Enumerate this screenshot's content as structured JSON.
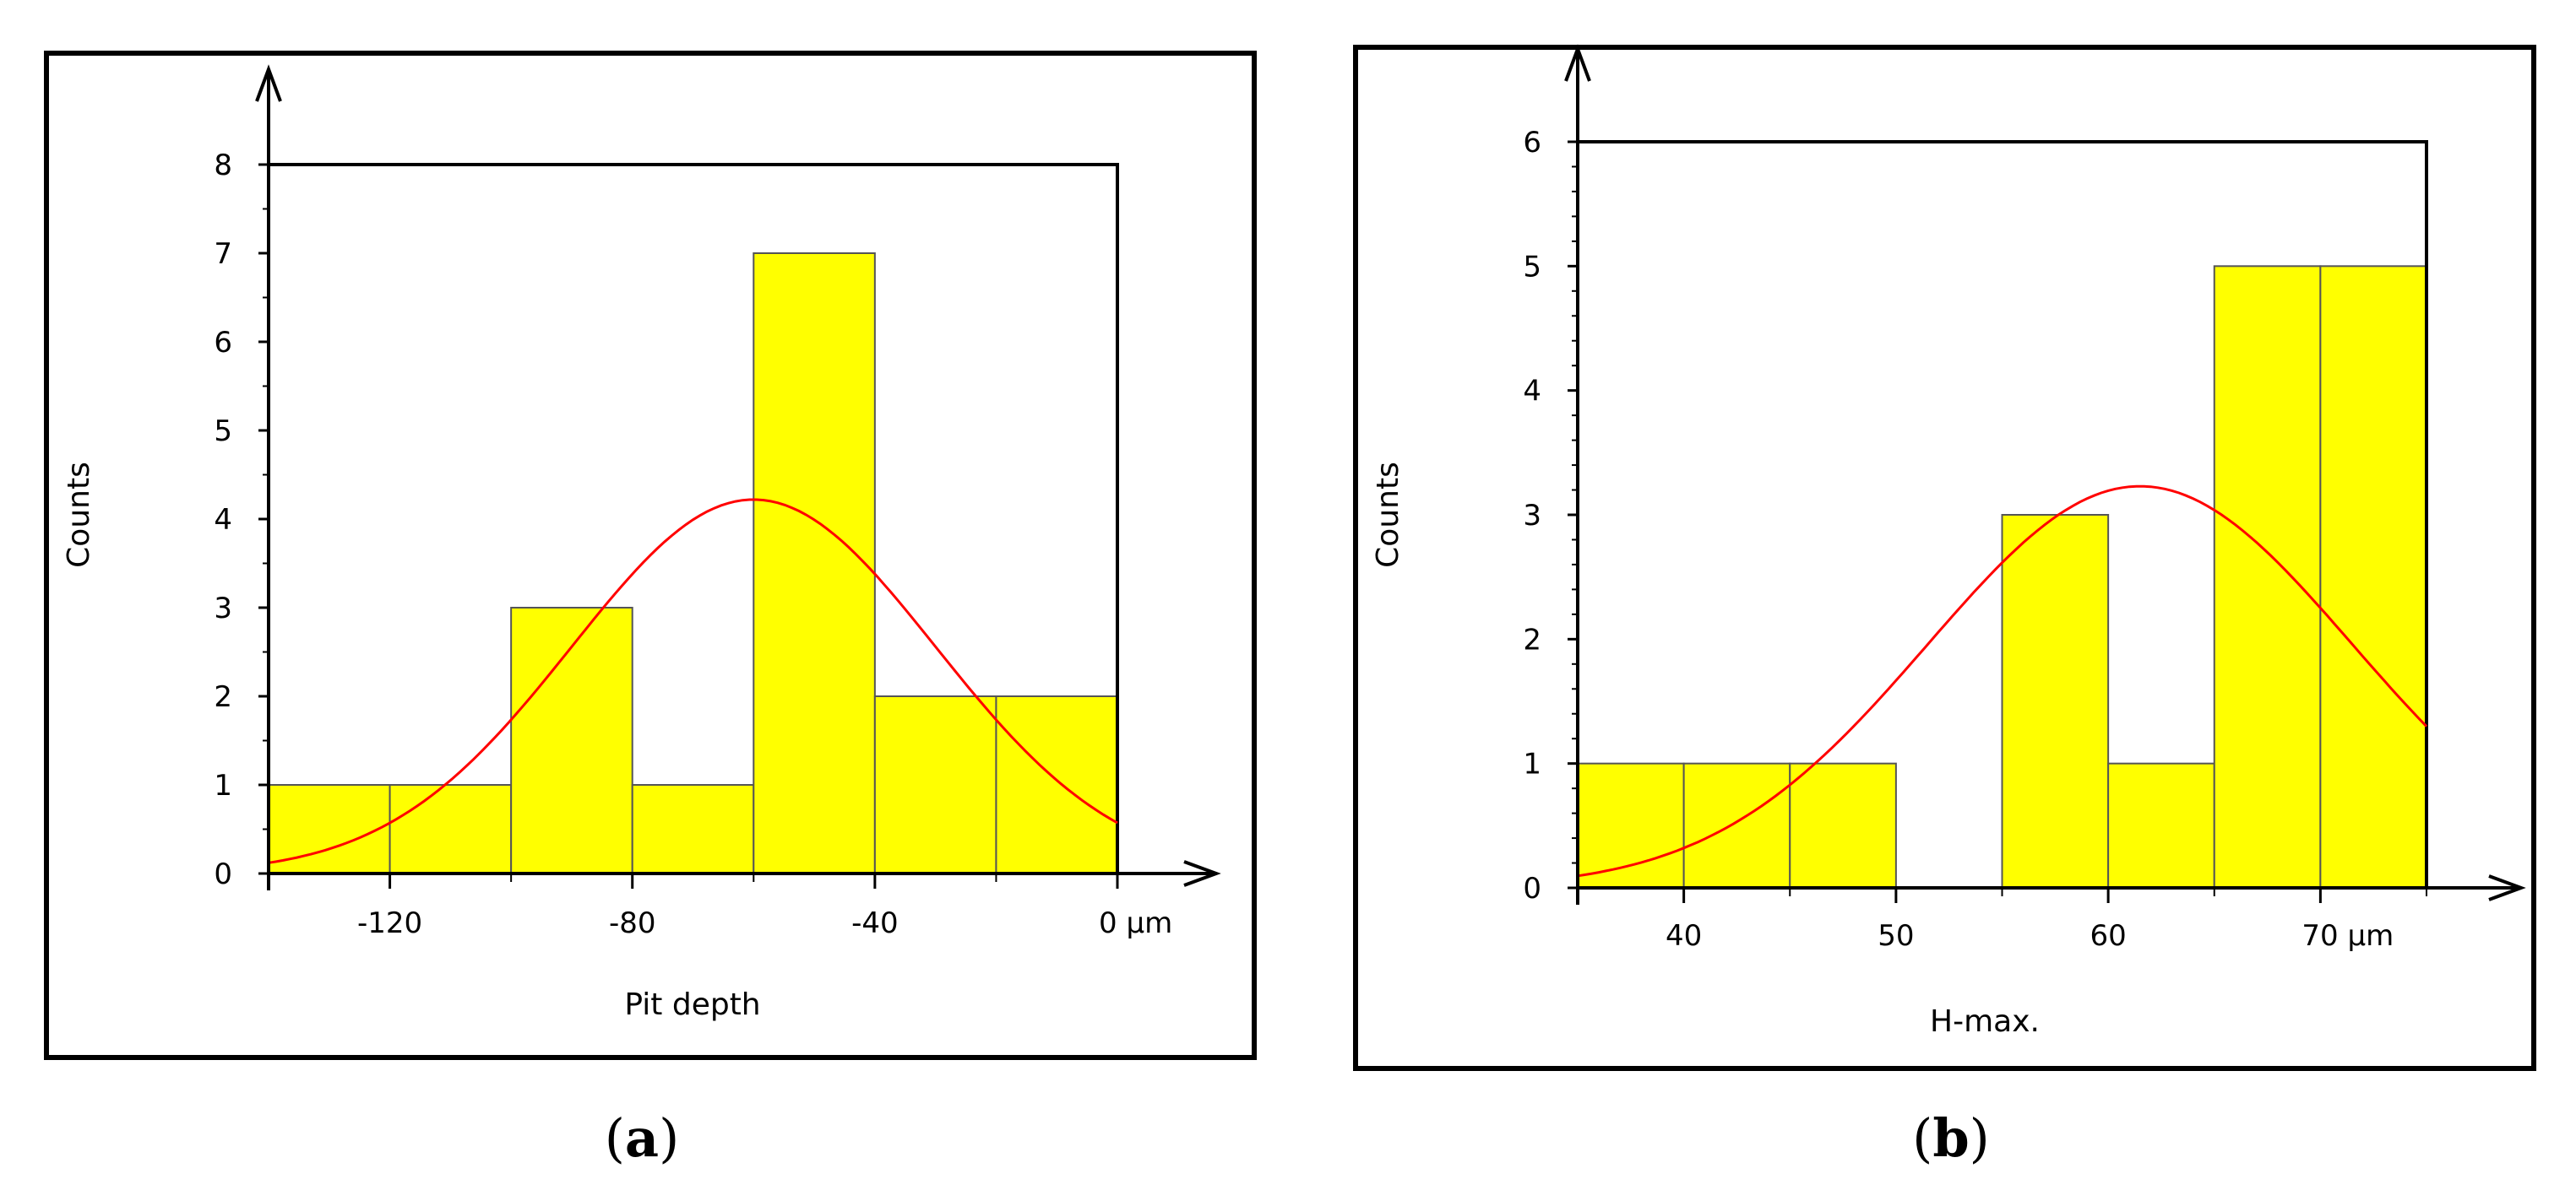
{
  "chart_data": [
    {
      "type": "bar",
      "panel_label": {
        "open": "(",
        "letter": "a",
        "close": ")"
      },
      "xlabel": "Pit depth",
      "ylabel": "Counts",
      "unit": "µm",
      "xlim": [
        -140,
        0
      ],
      "ylim": [
        0,
        8
      ],
      "x_ticks": [
        -120,
        -80,
        -40,
        0
      ],
      "x_tick_labels": [
        "-120",
        "-80",
        "-40",
        "0 µm"
      ],
      "y_ticks": [
        0,
        1,
        2,
        3,
        4,
        5,
        6,
        7,
        8
      ],
      "y_tick_labels": [
        "0",
        "1",
        "2",
        "3",
        "4",
        "5",
        "6",
        "7",
        "8"
      ],
      "y_minor_step": 0.5,
      "bins": [
        {
          "start": -140,
          "end": -120,
          "count": 1
        },
        {
          "start": -120,
          "end": -100,
          "count": 1
        },
        {
          "start": -100,
          "end": -80,
          "count": 3
        },
        {
          "start": -80,
          "end": -60,
          "count": 1
        },
        {
          "start": -60,
          "end": -40,
          "count": 7
        },
        {
          "start": -40,
          "end": -20,
          "count": 2
        },
        {
          "start": -20,
          "end": 0,
          "count": 2
        }
      ],
      "fit": {
        "type": "normal",
        "mean": -60,
        "sd": 30,
        "peak": 4.22
      },
      "colors": {
        "bar": "#ffff00",
        "bar_edge": "#555555",
        "fit": "#ff0000",
        "axis": "#000000"
      }
    },
    {
      "type": "bar",
      "panel_label": {
        "open": "(",
        "letter": "b",
        "close": ")"
      },
      "xlabel": "H-max.",
      "ylabel": "Counts",
      "unit": "µm",
      "xlim": [
        35,
        75
      ],
      "ylim": [
        0,
        6
      ],
      "x_ticks": [
        40,
        50,
        60,
        70
      ],
      "x_tick_labels": [
        "40",
        "50",
        "60",
        "70 µm"
      ],
      "y_ticks": [
        0,
        1,
        2,
        3,
        4,
        5,
        6
      ],
      "y_tick_labels": [
        "0",
        "1",
        "2",
        "3",
        "4",
        "5",
        "6"
      ],
      "y_minor_step": 0.2,
      "bins": [
        {
          "start": 35,
          "end": 40,
          "count": 1
        },
        {
          "start": 40,
          "end": 45,
          "count": 1
        },
        {
          "start": 45,
          "end": 50,
          "count": 1
        },
        {
          "start": 50,
          "end": 55,
          "count": 0
        },
        {
          "start": 55,
          "end": 60,
          "count": 3
        },
        {
          "start": 60,
          "end": 65,
          "count": 1
        },
        {
          "start": 65,
          "end": 70,
          "count": 5
        },
        {
          "start": 70,
          "end": 75,
          "count": 5
        }
      ],
      "fit": {
        "type": "normal",
        "mean": 61.5,
        "sd": 10,
        "peak": 3.23
      },
      "colors": {
        "bar": "#ffff00",
        "bar_edge": "#555555",
        "fit": "#ff0000",
        "axis": "#000000"
      }
    }
  ]
}
